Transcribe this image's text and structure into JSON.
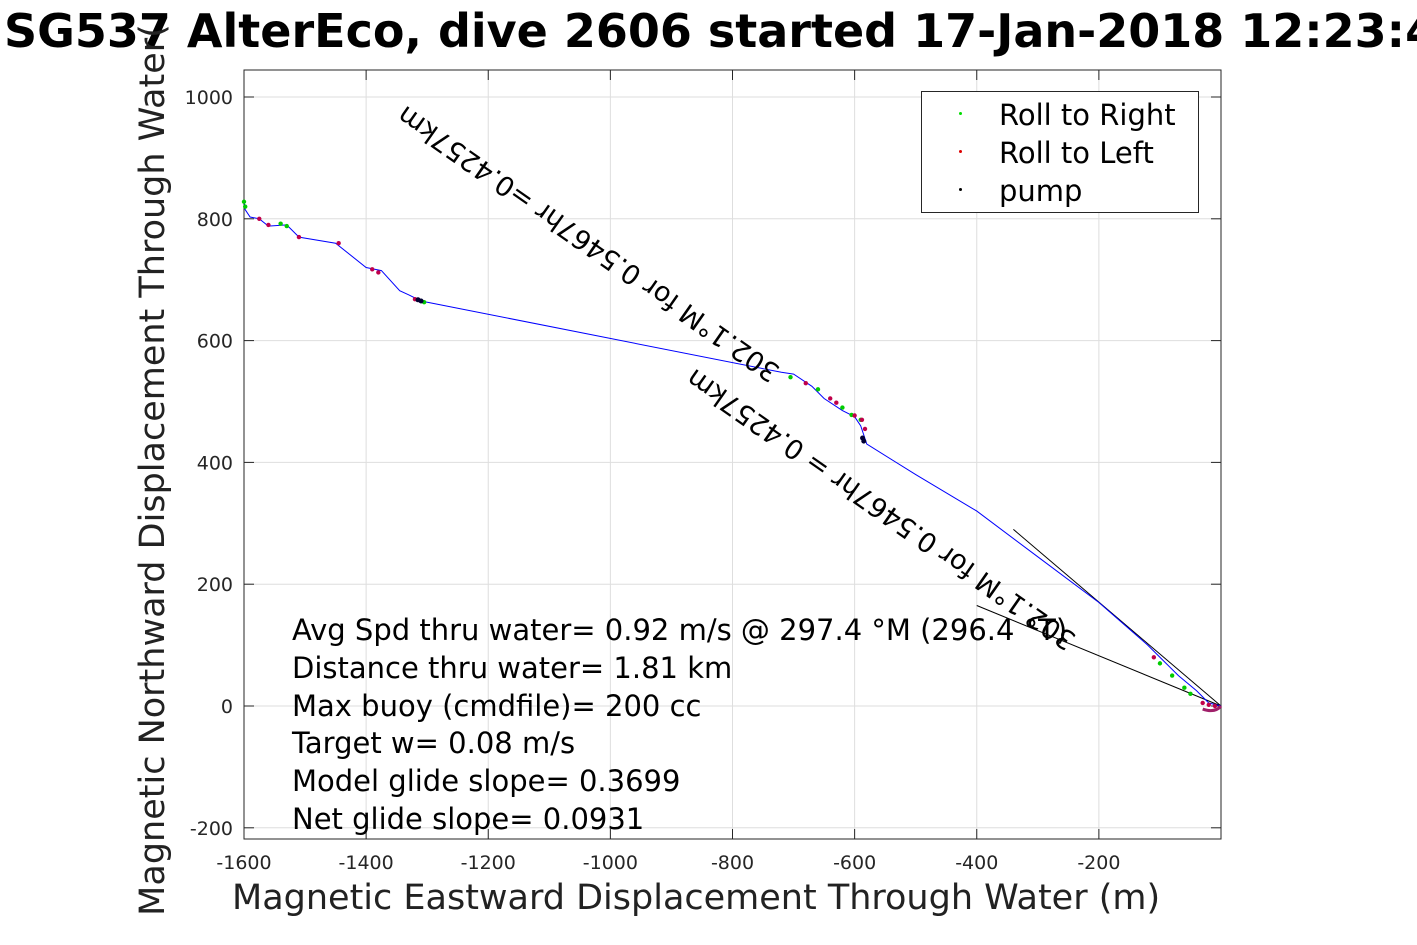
{
  "chart_data": {
    "type": "line",
    "title": "SG537 AlterEco, dive 2606 started 17-Jan-2018 12:23:4",
    "xlabel": "Magnetic Eastward Displacement Through Water (m)",
    "ylabel": "Magnetic Northward Displacement Through Water(",
    "xlim": [
      -1600,
      0
    ],
    "ylim": [
      -200,
      1000
    ],
    "x_ticks": [
      -1600,
      -1400,
      -1200,
      -1000,
      -800,
      -600,
      -400,
      -200
    ],
    "y_ticks": [
      -200,
      0,
      200,
      400,
      600,
      800,
      1000
    ],
    "grid": true,
    "legend_location": "top-right",
    "legend": [
      {
        "label": "Roll to Right",
        "color": "#00dd00"
      },
      {
        "label": "Roll to Left",
        "color": "#dd0000"
      },
      {
        "label": "pump",
        "color": "#000000"
      }
    ],
    "track": {
      "name": "Track",
      "color": "#0000ff",
      "points": [
        [
          0,
          0
        ],
        [
          -20,
          5
        ],
        [
          -40,
          25
        ],
        [
          -70,
          50
        ],
        [
          -120,
          100
        ],
        [
          -200,
          170
        ],
        [
          -300,
          245
        ],
        [
          -400,
          320
        ],
        [
          -500,
          380
        ],
        [
          -580,
          430
        ],
        [
          -585,
          445
        ],
        [
          -590,
          460
        ],
        [
          -600,
          475
        ],
        [
          -620,
          485
        ],
        [
          -650,
          505
        ],
        [
          -670,
          525
        ],
        [
          -700,
          545
        ],
        [
          -720,
          548
        ],
        [
          -1310,
          665
        ],
        [
          -1330,
          675
        ],
        [
          -1345,
          682
        ],
        [
          -1375,
          715
        ],
        [
          -1400,
          720
        ],
        [
          -1450,
          760
        ],
        [
          -1510,
          770
        ],
        [
          -1530,
          790
        ],
        [
          -1560,
          788
        ],
        [
          -1575,
          800
        ],
        [
          -1590,
          803
        ],
        [
          -1598,
          815
        ],
        [
          -1600,
          830
        ]
      ]
    },
    "roll_right_points": [
      [
        -1600,
        828
      ],
      [
        -1598,
        820
      ],
      [
        -1540,
        792
      ],
      [
        -1530,
        788
      ],
      [
        -1305,
        663
      ],
      [
        -705,
        540
      ],
      [
        -660,
        520
      ],
      [
        -620,
        490
      ],
      [
        -605,
        478
      ],
      [
        -590,
        470
      ],
      [
        -100,
        70
      ],
      [
        -80,
        50
      ],
      [
        -60,
        30
      ],
      [
        -50,
        20
      ]
    ],
    "roll_left_points": [
      [
        -1575,
        800
      ],
      [
        -1560,
        790
      ],
      [
        -1510,
        770
      ],
      [
        -1445,
        760
      ],
      [
        -1390,
        717
      ],
      [
        -1380,
        712
      ],
      [
        -1320,
        668
      ],
      [
        -680,
        530
      ],
      [
        -640,
        505
      ],
      [
        -630,
        498
      ],
      [
        -600,
        477
      ],
      [
        -588,
        470
      ],
      [
        -583,
        455
      ],
      [
        -110,
        80
      ],
      [
        -30,
        5
      ],
      [
        -20,
        2
      ],
      [
        -10,
        0
      ]
    ],
    "pump_points": [
      [
        -1315,
        667
      ],
      [
        -1310,
        665
      ],
      [
        -587,
        440
      ],
      [
        -585,
        435
      ]
    ],
    "annotations": [
      {
        "text": "302.1 °M for 0.5467 hr =0.4257 km",
        "x": -720,
        "y": 555,
        "angle_deg": 219,
        "from": [
          0,
          0
        ],
        "to": [
          -340,
          290
        ]
      },
      {
        "text": "302.1 °M for 0.5467 hr = 0.4257 km",
        "x": -340,
        "y": 290,
        "angle_deg": 219,
        "from": [
          0,
          0
        ],
        "to": [
          -400,
          165
        ]
      }
    ],
    "annotation_labels": {
      "top": "302.1°M for 0.5467hr =0.4257km",
      "lower": "302.1°M for 0.5467hr = 0.4257km"
    }
  },
  "stats": [
    "Avg Spd thru water=  0.92 m/s @ 297.4 °M (296.4 °T)",
    "Distance thru water=  1.81 km",
    "Max buoy (cmdfile)= 200 cc",
    "Target w= 0.08 m/s",
    "Model glide slope= 0.3699",
    "Net glide slope= 0.0931"
  ]
}
